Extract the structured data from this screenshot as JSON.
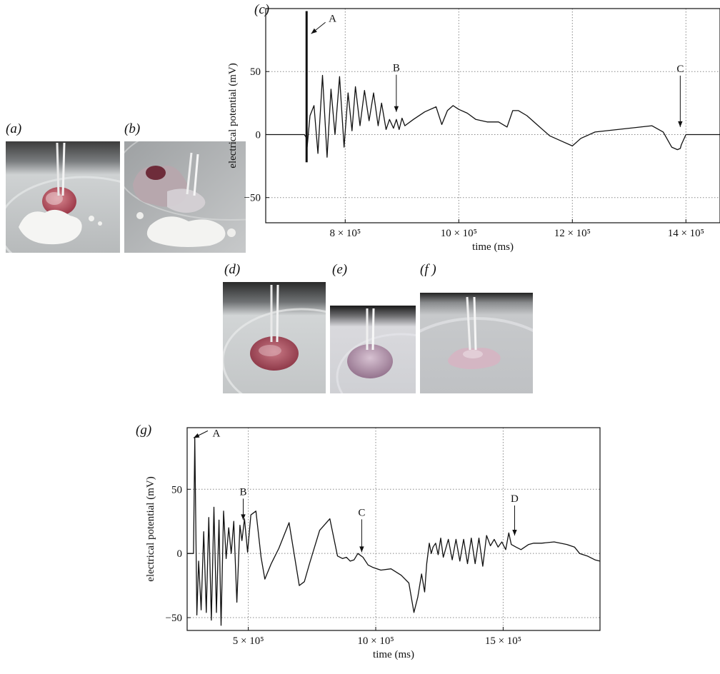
{
  "panels": {
    "a": "(a)",
    "b": "(b)",
    "c": "(c)",
    "d": "(d)",
    "e": "(e)",
    "f": "(f )",
    "g": "(g)"
  },
  "photos": {
    "a": {
      "bg": "#d3d6d6",
      "top": "#4a4a4a",
      "fruit": "#b85a66",
      "powder": "#f4f4f2"
    },
    "b": {
      "bg": "#b9bcbd",
      "fruit": "#8e4450",
      "gel": "#d9d9dc"
    },
    "d": {
      "bg": "#c8cbcc",
      "top": "#2e2e2e",
      "fruit": "#a24a59"
    },
    "e": {
      "bg": "#d7d7db",
      "top": "#1e1e1e",
      "fruit": "#b28fa6"
    },
    "f": {
      "bg": "#c5c6c9",
      "top": "#262626",
      "fruit": "#c9a8b6"
    }
  },
  "chart_data": [
    {
      "id": "c",
      "type": "line",
      "xlabel": "time (ms)",
      "ylabel": "electrical potential (mV)",
      "xlim": [
        660000,
        1460000
      ],
      "ylim": [
        -70,
        100
      ],
      "xticks": [
        800000,
        1000000,
        1200000,
        1400000
      ],
      "xtick_labels": [
        "8 × 10⁵",
        "10 × 10⁵",
        "12 × 10⁵",
        "14 × 10⁵"
      ],
      "yticks": [
        -50,
        0,
        50
      ],
      "ytick_labels": [
        "−50",
        "0",
        "50"
      ],
      "grid": true,
      "spike": {
        "x": 732000,
        "y_min": -22,
        "y_max": 98
      },
      "series": [
        {
          "x": [
            660000,
            728000,
            731000,
            733000,
            738000,
            745000,
            752000,
            760000,
            768000,
            775000,
            782000,
            790000,
            798000,
            805000,
            812000,
            818000,
            826000,
            834000,
            842000,
            850000,
            858000,
            864000,
            872000,
            878000,
            885000,
            890000,
            895000,
            900000,
            905000,
            920000,
            940000,
            960000,
            970000,
            980000,
            990000,
            1000000,
            1015000,
            1030000,
            1050000,
            1070000,
            1085000,
            1095000,
            1105000,
            1120000,
            1140000,
            1160000,
            1180000,
            1200000,
            1215000,
            1240000,
            1280000,
            1320000,
            1340000,
            1360000,
            1375000,
            1385000,
            1390000,
            1392000,
            1400000,
            1460000
          ],
          "y": [
            0,
            0,
            -2,
            -10,
            15,
            23,
            -15,
            47,
            -18,
            36,
            0,
            46,
            -10,
            33,
            3,
            38,
            7,
            35,
            11,
            33,
            7,
            25,
            4,
            12,
            5,
            12,
            4,
            13,
            7,
            12,
            18,
            22,
            8,
            19,
            23,
            20,
            17,
            12,
            10,
            10,
            6,
            19,
            19,
            15,
            7,
            -1,
            -5,
            -9,
            -3,
            2,
            4,
            6,
            7,
            2,
            -10,
            -12,
            -11,
            -8,
            0,
            0
          ]
        }
      ],
      "annotations": [
        {
          "label": "A",
          "x": 740000,
          "y": 80
        },
        {
          "label": "B",
          "x": 890000,
          "y": 18
        },
        {
          "label": "C",
          "x": 1390000,
          "y": 6
        }
      ]
    },
    {
      "id": "g",
      "type": "line",
      "xlabel": "time (ms)",
      "ylabel": "electrical potential (mV)",
      "xlim": [
        260000,
        1880000
      ],
      "ylim": [
        -60,
        98
      ],
      "xticks": [
        500000,
        1000000,
        1500000
      ],
      "xtick_labels": [
        "5 × 10⁵",
        "10 × 10⁵",
        "15 × 10⁵"
      ],
      "yticks": [
        -50,
        0,
        50
      ],
      "ytick_labels": [
        "−50",
        "0",
        "50"
      ],
      "grid": true,
      "series": [
        {
          "x": [
            260000,
            285000,
            290000,
            298000,
            305000,
            315000,
            325000,
            335000,
            345000,
            355000,
            365000,
            375000,
            385000,
            393000,
            403000,
            413000,
            423000,
            433000,
            443000,
            455000,
            467000,
            475000,
            485000,
            497000,
            510000,
            530000,
            550000,
            565000,
            590000,
            620000,
            660000,
            700000,
            720000,
            740000,
            780000,
            820000,
            850000,
            870000,
            885000,
            900000,
            915000,
            930000,
            950000,
            970000,
            990000,
            1020000,
            1060000,
            1100000,
            1130000,
            1150000,
            1165000,
            1180000,
            1192000,
            1200000,
            1210000,
            1218000,
            1225000,
            1235000,
            1245000,
            1255000,
            1265000,
            1285000,
            1300000,
            1315000,
            1330000,
            1345000,
            1360000,
            1375000,
            1390000,
            1405000,
            1420000,
            1435000,
            1450000,
            1465000,
            1480000,
            1495000,
            1510000,
            1522000,
            1532000,
            1550000,
            1570000,
            1600000,
            1620000,
            1650000,
            1700000,
            1750000,
            1780000,
            1800000,
            1830000,
            1860000,
            1880000
          ],
          "y": [
            0,
            0,
            90,
            -48,
            -6,
            -44,
            17,
            -46,
            28,
            -52,
            36,
            -46,
            26,
            -56,
            33,
            -4,
            20,
            0,
            25,
            -38,
            22,
            10,
            27,
            1,
            30,
            33,
            -3,
            -20,
            -8,
            4,
            24,
            -25,
            -22,
            -8,
            18,
            27,
            -2,
            -4,
            -3,
            -6,
            -5,
            0,
            -3,
            -9,
            -11,
            -13,
            -12,
            -17,
            -23,
            -46,
            -34,
            -16,
            -30,
            -8,
            8,
            0,
            5,
            8,
            -1,
            12,
            -3,
            11,
            -5,
            11,
            -6,
            11,
            -8,
            12,
            -8,
            12,
            -10,
            14,
            6,
            11,
            5,
            9,
            3,
            16,
            7,
            5,
            3,
            7,
            8,
            8,
            9,
            7,
            5,
            0,
            -2,
            -5,
            -6
          ]
        }
      ],
      "annotations": [
        {
          "label": "A",
          "x": 285000,
          "y": 90
        },
        {
          "label": "B",
          "x": 480000,
          "y": 26
        },
        {
          "label": "C",
          "x": 945000,
          "y": 1
        },
        {
          "label": "D",
          "x": 1545000,
          "y": 14
        }
      ]
    }
  ]
}
